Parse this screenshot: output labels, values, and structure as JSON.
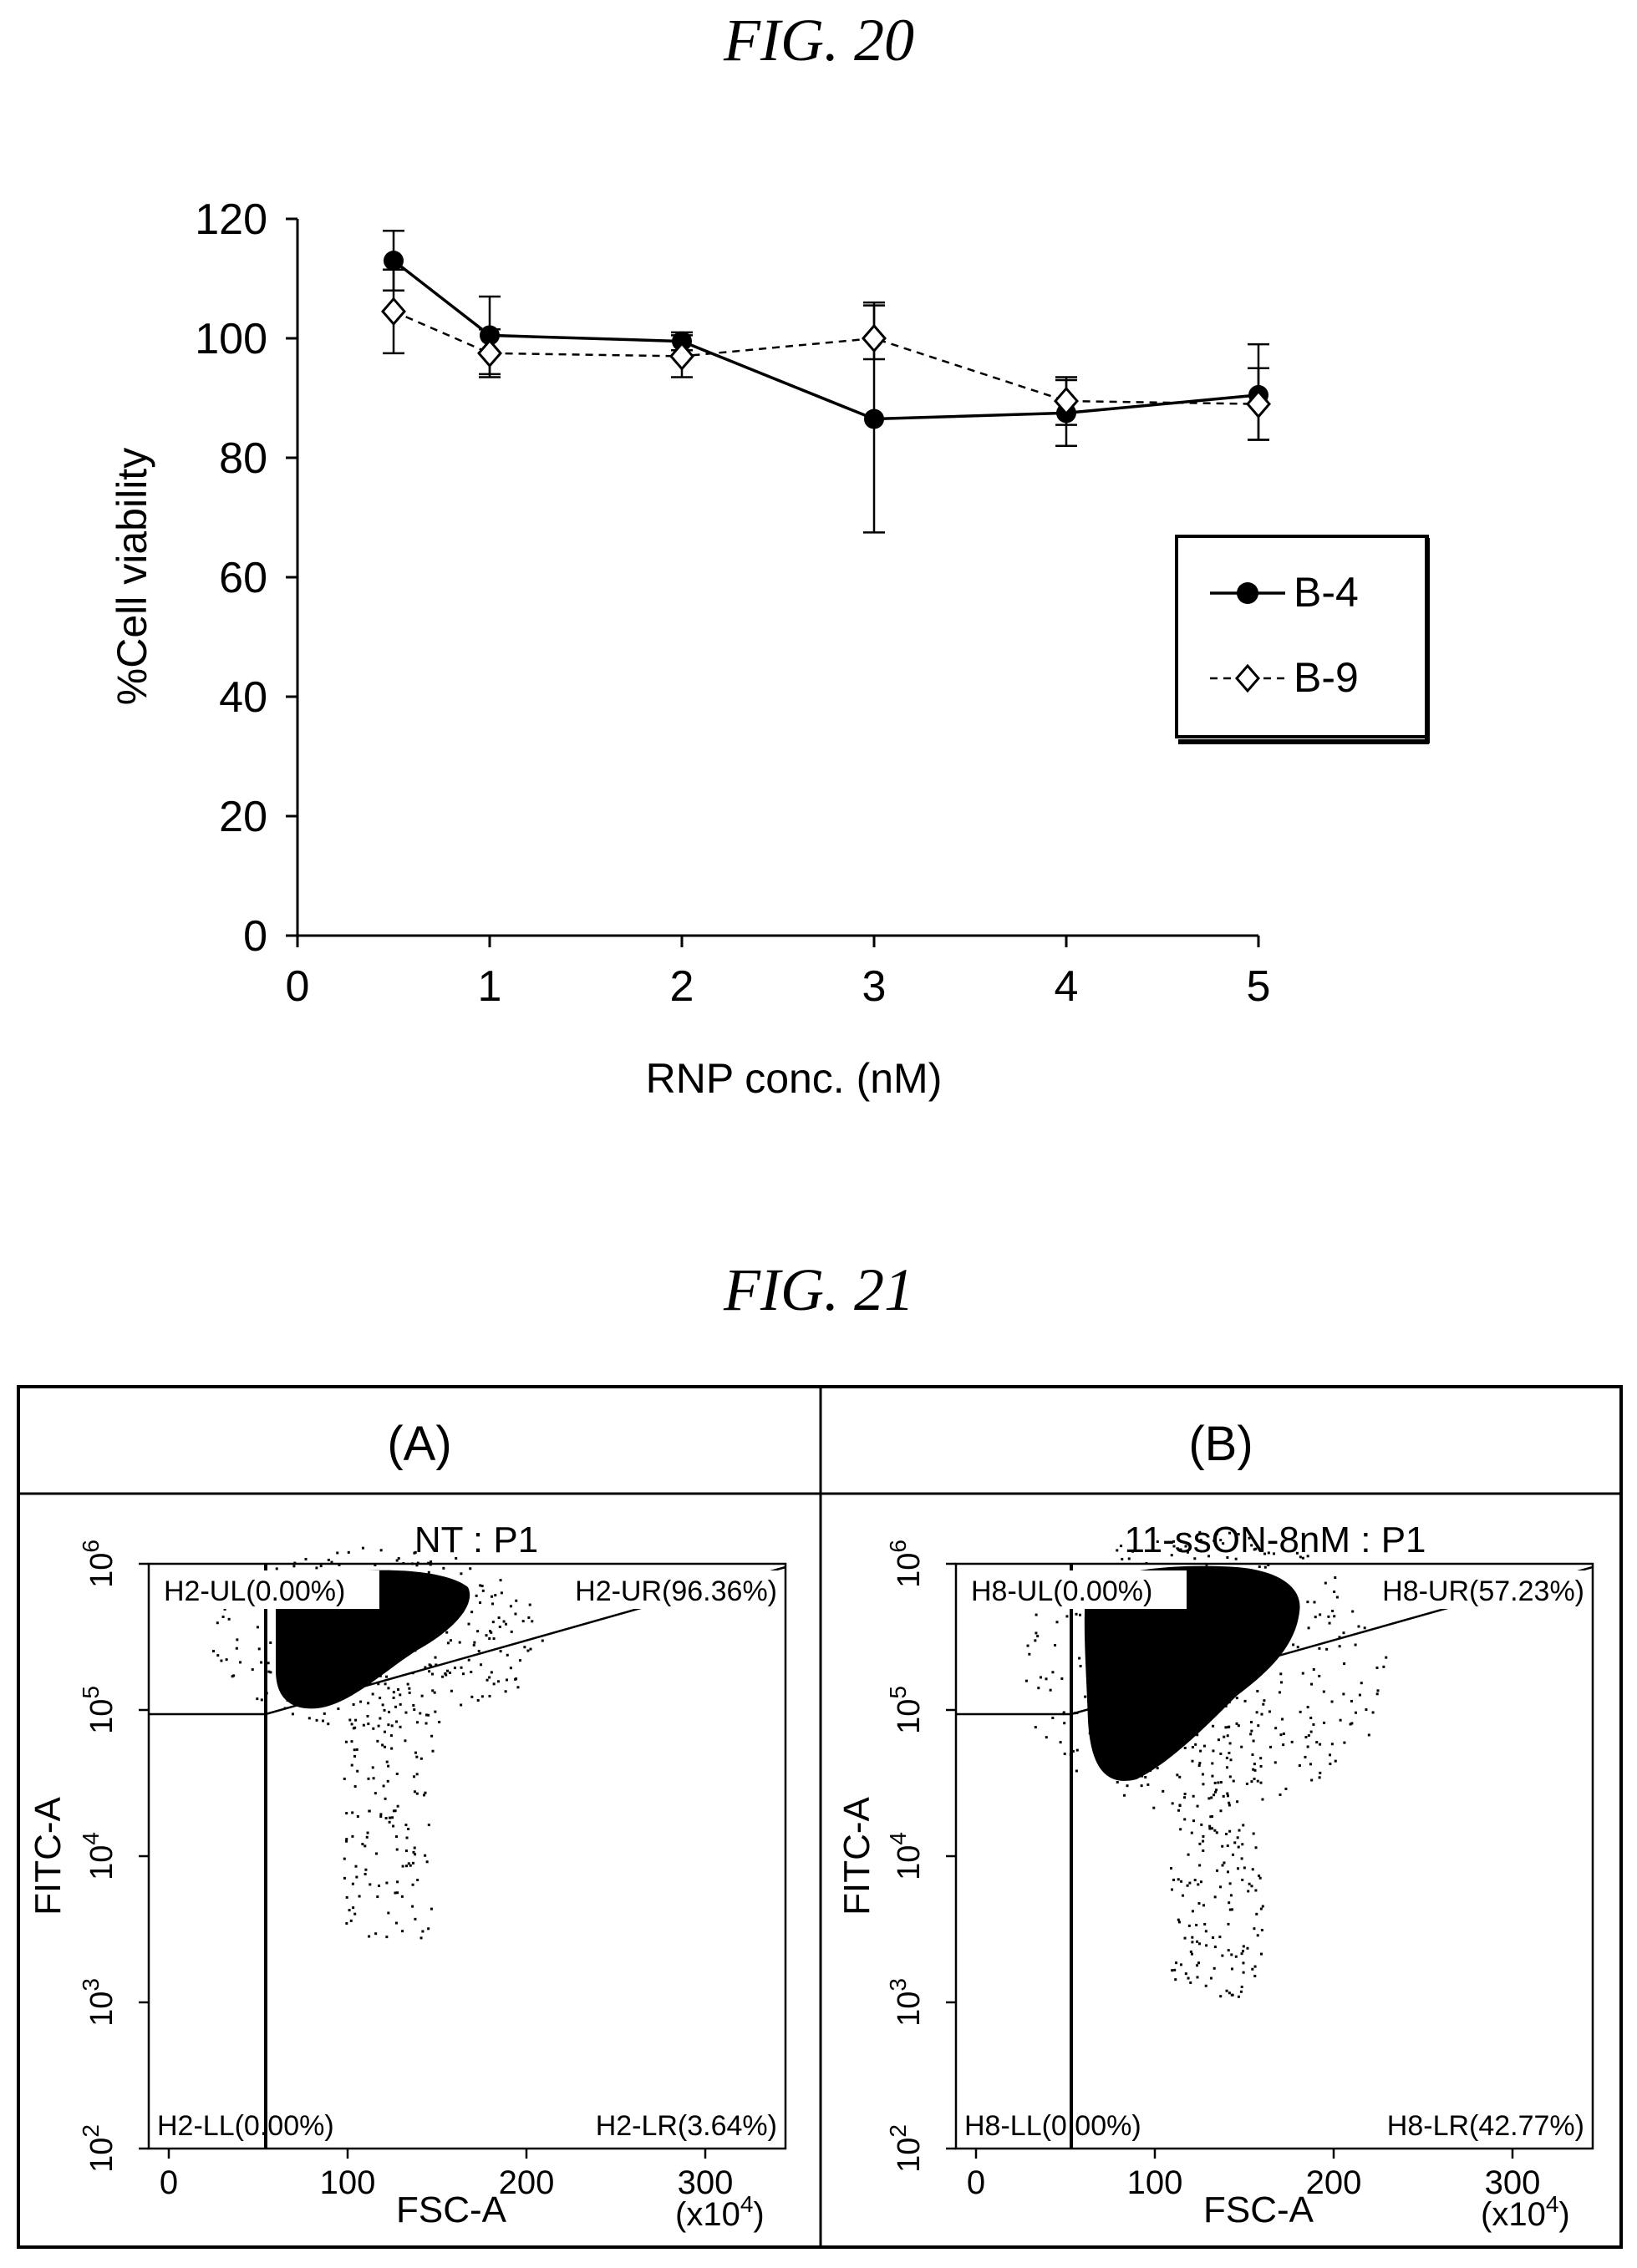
{
  "fig20": {
    "title": "FIG. 20",
    "chart_data": {
      "type": "line",
      "xlabel": "RNP conc. (nM)",
      "ylabel": "%Cell viability",
      "xlim": [
        0,
        5
      ],
      "ylim": [
        0,
        120
      ],
      "x_ticks": [
        "0",
        "1",
        "2",
        "3",
        "4",
        "5"
      ],
      "y_ticks": [
        "0",
        "20",
        "40",
        "60",
        "80",
        "100",
        "120"
      ],
      "grid": false,
      "legend_position": "right",
      "series": [
        {
          "name": "B-4",
          "marker": "filled-circle",
          "line": "solid",
          "x": [
            0.5,
            1,
            2,
            3,
            4,
            5
          ],
          "y": [
            113,
            100.5,
            99.5,
            86.5,
            87.5,
            90.5
          ],
          "err_lo": [
            5,
            6.5,
            1.5,
            19,
            5.5,
            7.5
          ],
          "err_hi": [
            5,
            6.5,
            1.5,
            19,
            5.5,
            8.5
          ]
        },
        {
          "name": "B-9",
          "marker": "open-diamond",
          "line": "dashed",
          "x": [
            0.5,
            1,
            2,
            3,
            4,
            5
          ],
          "y": [
            104.5,
            97.5,
            97,
            100,
            89.5,
            89
          ],
          "err_lo": [
            7,
            4,
            3.5,
            3.5,
            4,
            6
          ],
          "err_hi": [
            7,
            4,
            3.5,
            6,
            4,
            6
          ]
        }
      ]
    }
  },
  "fig21": {
    "title": "FIG. 21",
    "panels": [
      {
        "label": "(A)",
        "plot_title": "NT : P1",
        "y_label": "FITC-A",
        "x_label": "FSC-A",
        "x_unit": "(x10",
        "x_unit_exp": "4",
        "x_ticks": [
          "0",
          "100",
          "200",
          "300"
        ],
        "y_ticks": [
          "10",
          "10",
          "10",
          "10",
          "10"
        ],
        "y_tick_exps": [
          "2",
          "3",
          "4",
          "5",
          "6"
        ],
        "quadrants": {
          "ul": "H2-UL(0.00%)",
          "ur": "H2-UR(96.36%)",
          "ll": "H2-LL(0.00%)",
          "lr": "H2-LR(3.64%)"
        }
      },
      {
        "label": "(B)",
        "plot_title": "11-ssON-8nM : P1",
        "y_label": "FITC-A",
        "x_label": "FSC-A",
        "x_unit": "(x10",
        "x_unit_exp": "4",
        "x_ticks": [
          "0",
          "100",
          "200",
          "300"
        ],
        "y_ticks": [
          "10",
          "10",
          "10",
          "10",
          "10"
        ],
        "y_tick_exps": [
          "2",
          "3",
          "4",
          "5",
          "6"
        ],
        "quadrants": {
          "ul": "H8-UL(0.00%)",
          "ur": "H8-UR(57.23%)",
          "ll": "H8-LL(0.00%)",
          "lr": "H8-LR(42.77%)"
        }
      }
    ]
  }
}
